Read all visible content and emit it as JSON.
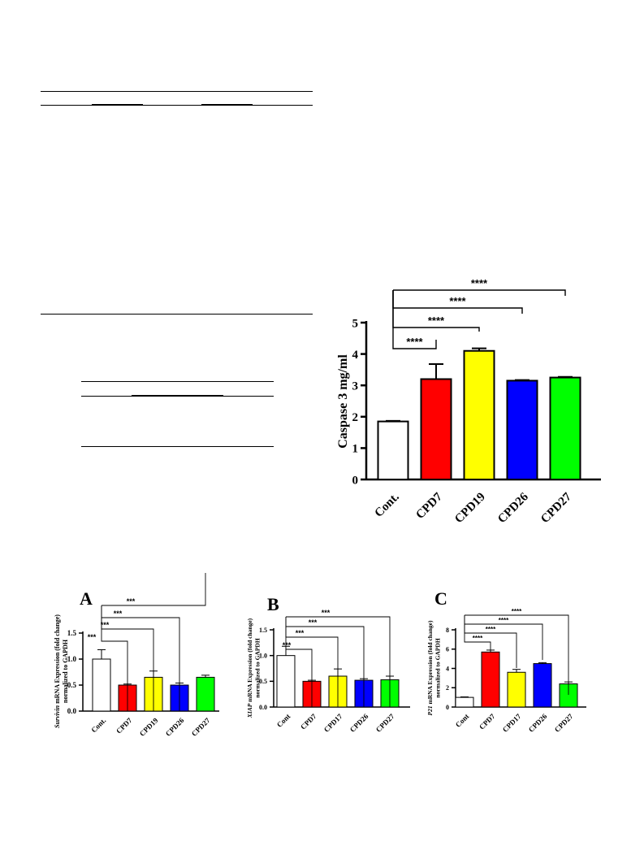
{
  "colors": {
    "control": "#ffffff",
    "cpd7": "#ff0000",
    "cpd19": "#ffff00",
    "cpd26": "#0000ff",
    "cpd27": "#00ff00",
    "cpd17": "#ffff00"
  },
  "chart_data": [
    {
      "id": "caspase",
      "type": "bar",
      "title": "",
      "ylabel": "Caspase 3 mg/ml",
      "xlabel": "",
      "ylim": [
        0,
        5
      ],
      "yticks": [
        "0",
        "1",
        "2",
        "3",
        "4",
        "5"
      ],
      "categories": [
        "Cont.",
        "CPD7",
        "CPD19",
        "CPD26",
        "CPD27"
      ],
      "values": [
        1.85,
        3.2,
        4.1,
        3.15,
        3.25
      ],
      "errors": [
        0.02,
        0.48,
        0.08,
        0.02,
        0.02
      ],
      "significance": [
        "****",
        "****",
        "****",
        "****"
      ],
      "grid": false
    },
    {
      "id": "survivin",
      "type": "bar",
      "panel": "A",
      "ylabel_italic": "Survivin",
      "ylabel_rest": " mRNA Expression (fold change)",
      "ylabel2": "normalized to GAPDH",
      "ylim": [
        0,
        1.5
      ],
      "yticks": [
        "0.0",
        "0.5",
        "1.0",
        "1.5"
      ],
      "categories": [
        "Cont.",
        "CPD7",
        "CPD19",
        "CPD26",
        "CPD27"
      ],
      "values": [
        1.0,
        0.5,
        0.65,
        0.5,
        0.65
      ],
      "errors": [
        0.18,
        0.02,
        0.12,
        0.04,
        0.04
      ],
      "significance": [
        "***",
        "***",
        "***",
        "***"
      ]
    },
    {
      "id": "xiap",
      "type": "bar",
      "panel": "B",
      "ylabel_italic": "XIAP",
      "ylabel_rest": " mRNA Expression (fold change)",
      "ylabel2": "normalized to GAPDH",
      "ylim": [
        0,
        1.5
      ],
      "yticks": [
        "0.0",
        "0.5",
        "1.0",
        "1.5"
      ],
      "categories": [
        "Cont",
        "CPD7",
        "CPD17",
        "CPD26",
        "CPD27"
      ],
      "values": [
        1.0,
        0.5,
        0.6,
        0.52,
        0.53
      ],
      "errors": [
        0.18,
        0.02,
        0.14,
        0.03,
        0.07
      ],
      "significance": [
        "***",
        "***",
        "***",
        "***"
      ]
    },
    {
      "id": "p21",
      "type": "bar",
      "panel": "C",
      "ylabel_italic": "P21",
      "ylabel_rest": " mRNA Expression (fold change)",
      "ylabel2": "normalized to GAPDH",
      "ylim": [
        0,
        8
      ],
      "yticks": [
        "0",
        "2",
        "4",
        "6",
        "8"
      ],
      "categories": [
        "Cont",
        "CPD7",
        "CPD17",
        "CPD26",
        "CPD27"
      ],
      "values": [
        1.0,
        5.7,
        3.6,
        4.5,
        2.4
      ],
      "errors": [
        0.05,
        0.2,
        0.3,
        0.1,
        0.2
      ],
      "significance": [
        "****",
        "****",
        "****",
        "****"
      ]
    }
  ]
}
